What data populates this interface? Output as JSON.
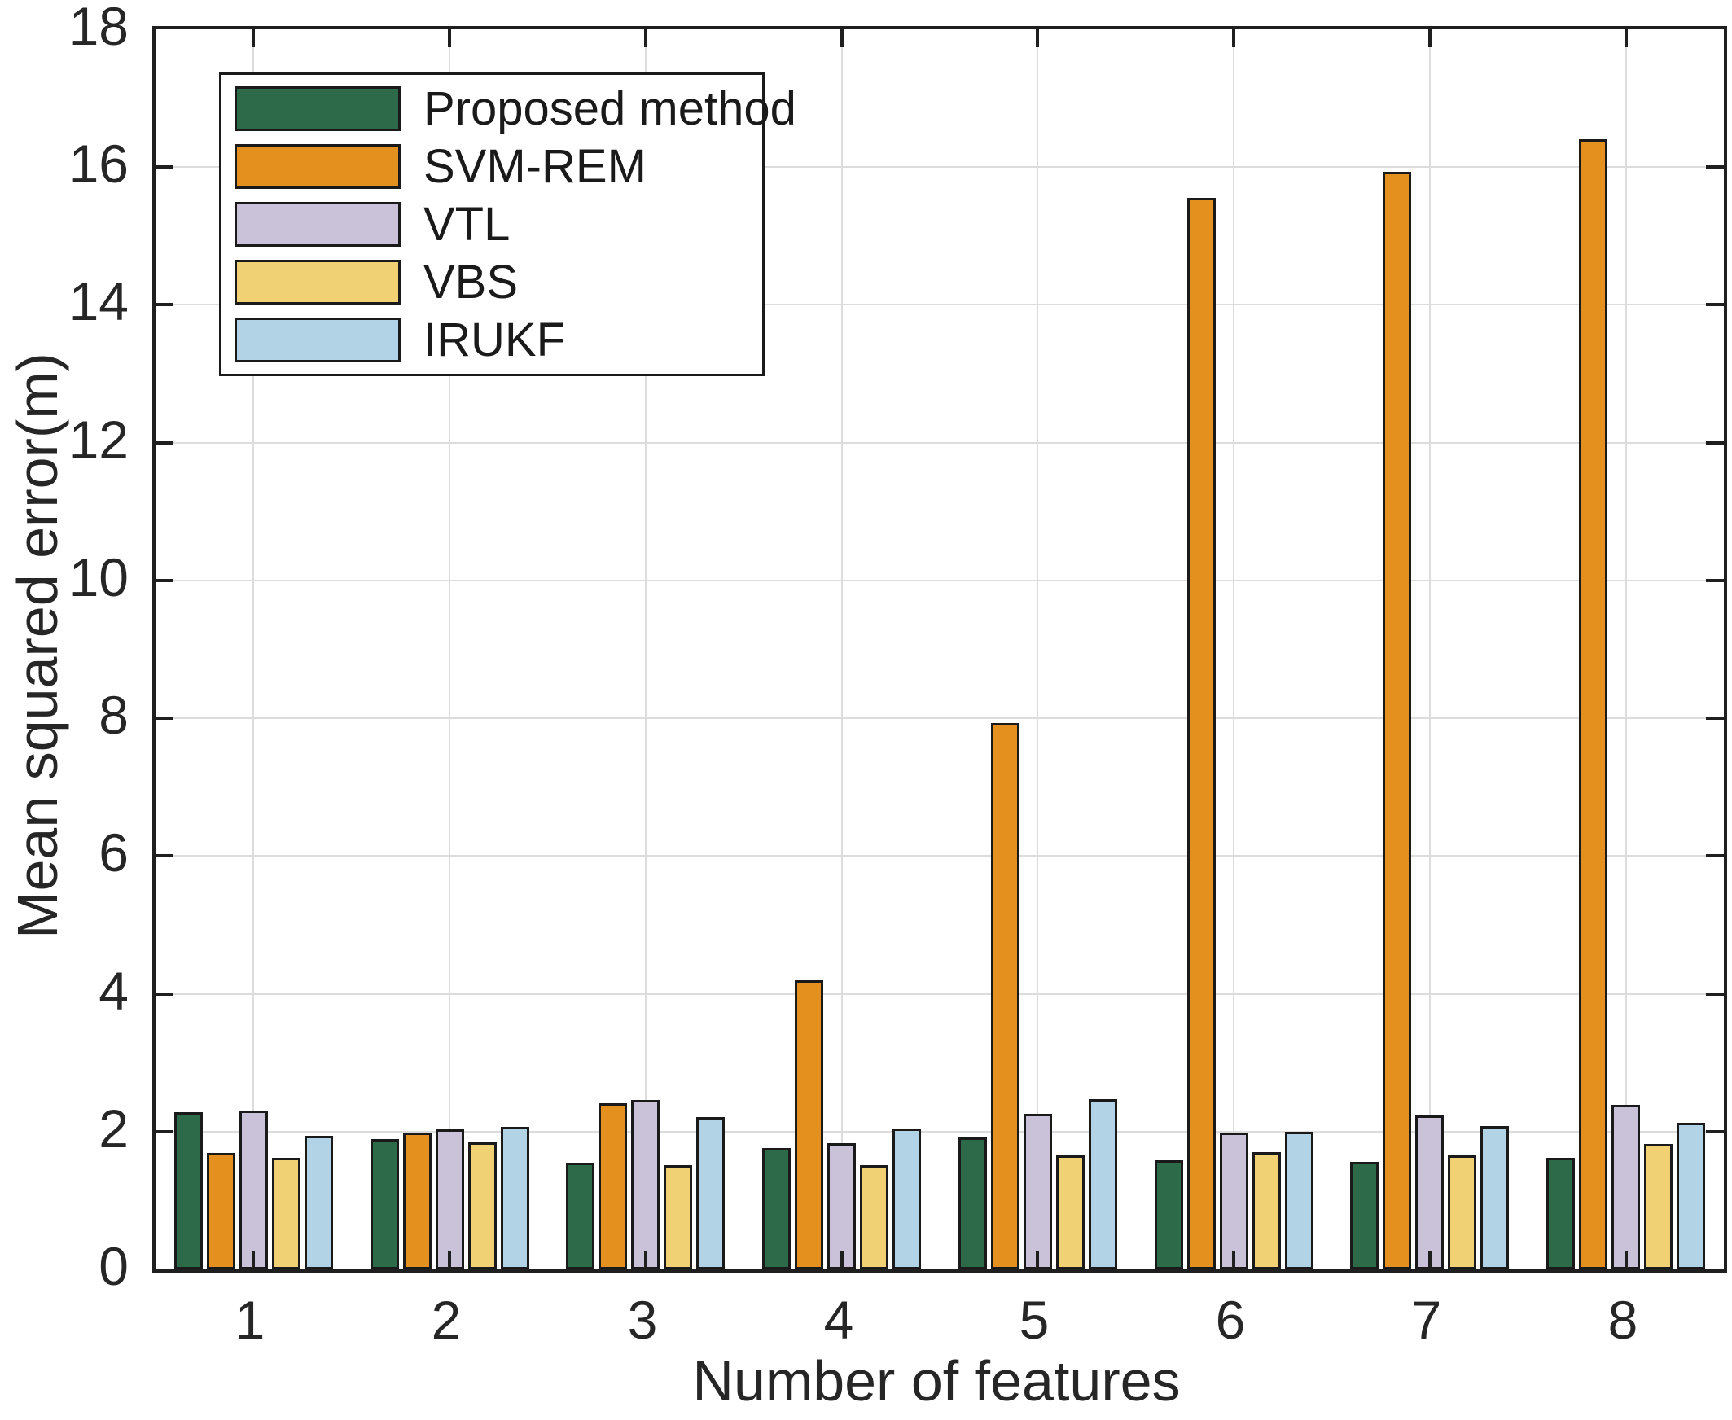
{
  "chart_data": {
    "type": "bar",
    "title": "",
    "xlabel": "Number of features",
    "ylabel": "Mean squared error(m)",
    "categories": [
      "1",
      "2",
      "3",
      "4",
      "5",
      "6",
      "7",
      "8"
    ],
    "ylim": [
      0,
      18
    ],
    "yticks": [
      0,
      2,
      4,
      6,
      8,
      10,
      12,
      14,
      16,
      18
    ],
    "grid": true,
    "legend_position": "top-left",
    "series": [
      {
        "name": "Proposed method",
        "color": "#2d6a4a",
        "values": [
          2.28,
          1.89,
          1.55,
          1.76,
          1.91,
          1.58,
          1.56,
          1.62
        ]
      },
      {
        "name": "SVM-REM",
        "color": "#e4901f",
        "values": [
          1.69,
          1.99,
          2.41,
          4.2,
          7.93,
          15.55,
          15.93,
          16.4
        ]
      },
      {
        "name": "VTL",
        "color": "#c9c2d8",
        "values": [
          2.31,
          2.03,
          2.46,
          1.83,
          2.26,
          1.99,
          2.23,
          2.39
        ]
      },
      {
        "name": "VBS",
        "color": "#f0d173",
        "values": [
          1.62,
          1.84,
          1.51,
          1.51,
          1.65,
          1.7,
          1.65,
          1.82
        ]
      },
      {
        "name": "IRUKF",
        "color": "#b2d3e5",
        "values": [
          1.94,
          2.07,
          2.21,
          2.05,
          2.47,
          2.0,
          2.08,
          2.13
        ]
      }
    ]
  },
  "colors": {
    "axis": "#1f1f1f",
    "grid": "#dcdcdc",
    "bar_edge": "#1a1a1a",
    "text": "#262626",
    "background": "#ffffff"
  }
}
